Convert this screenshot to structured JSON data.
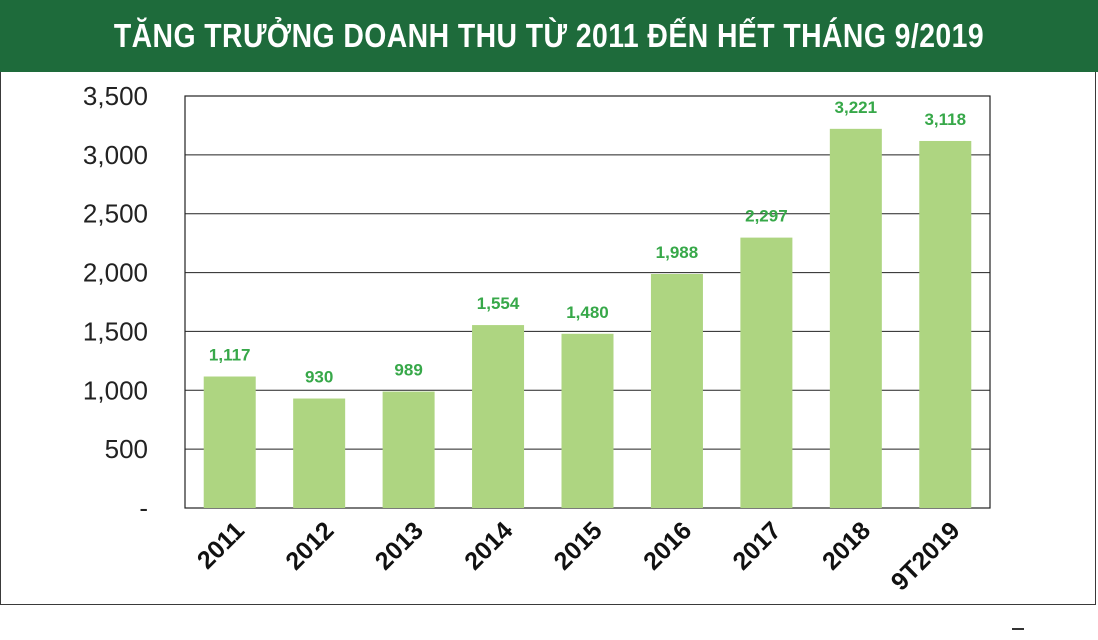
{
  "title": "TĂNG TRƯỞNG DOANH THU TỪ 2011 ĐẾN HẾT THÁNG 9/2019",
  "colors": {
    "header_bg": "#1e6b3b",
    "bar": "#aed581",
    "label": "#37a849",
    "grid": "#222222"
  },
  "chart_data": {
    "type": "bar",
    "title": "TĂNG TRƯỞNG DOANH THU TỪ 2011 ĐẾN HẾT THÁNG 9/2019",
    "categories": [
      "2011",
      "2012",
      "2013",
      "2014",
      "2015",
      "2016",
      "2017",
      "2018",
      "9T2019"
    ],
    "values": [
      1117,
      930,
      989,
      1554,
      1480,
      1988,
      2297,
      3221,
      3118
    ],
    "value_labels": [
      "1,117",
      "930",
      "989",
      "1,554",
      "1,480",
      "1,988",
      "2,297",
      "3,221",
      "3,118"
    ],
    "ylim": [
      0,
      3500
    ],
    "yticks": [
      0,
      500,
      1000,
      1500,
      2000,
      2500,
      3000,
      3500
    ],
    "ytick_labels": [
      "-",
      "500",
      "1,000",
      "1,500",
      "2,000",
      "2,500",
      "3,000",
      "3,500"
    ],
    "xlabel": "",
    "ylabel": "",
    "grid": true,
    "legend": "none"
  }
}
